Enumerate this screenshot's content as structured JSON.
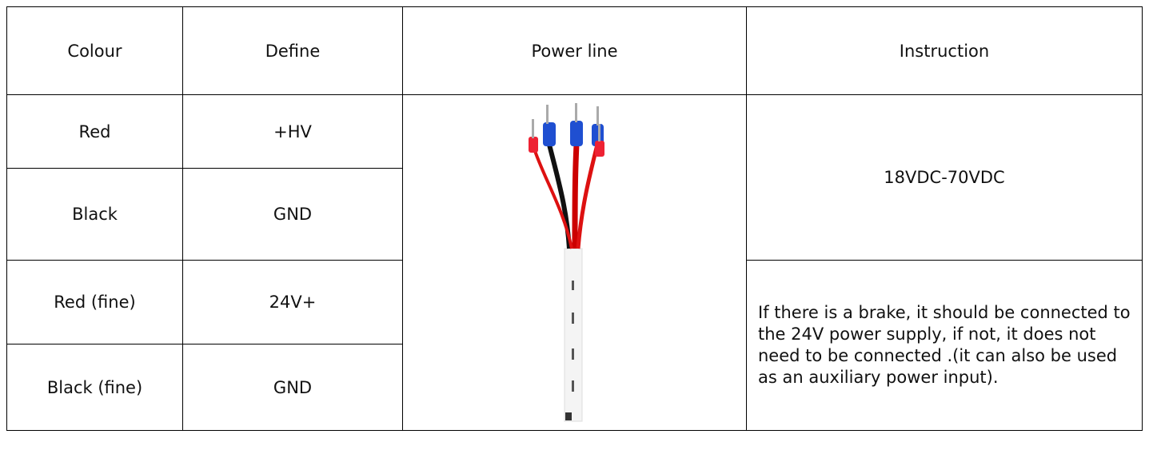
{
  "table": {
    "header": [
      "Colour",
      "Define",
      "Power line",
      "Instruction"
    ],
    "rows": [
      [
        "Red",
        "+HV"
      ],
      [
        "Black",
        "GND"
      ],
      [
        "Red (fine)",
        "24V+"
      ],
      [
        "Black (fine)",
        "GND"
      ]
    ],
    "instructions": [
      "18VDC-70VDC",
      "If there is a brake, it should be connected to the 24V power supply, if not, it does not need to be connected .(it can also be used as an auxiliary power input)."
    ]
  }
}
